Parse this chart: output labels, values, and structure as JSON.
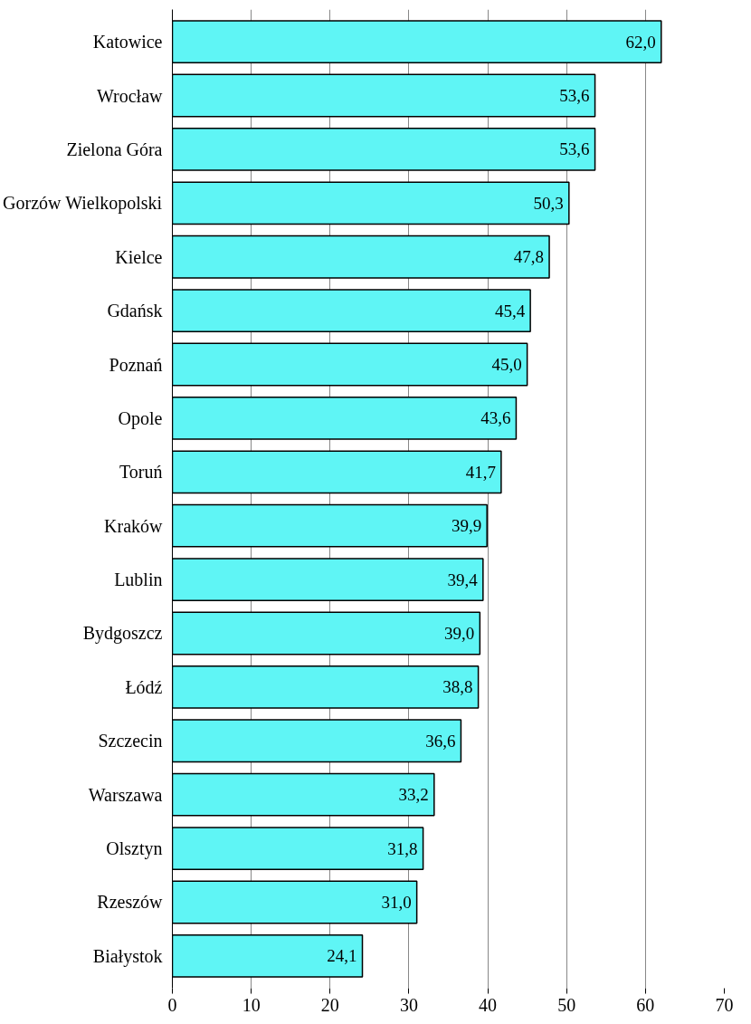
{
  "chart_data": {
    "type": "bar",
    "orientation": "horizontal",
    "categories": [
      "Katowice",
      "Wrocław",
      "Zielona Góra",
      "Gorzów Wielkopolski",
      "Kielce",
      "Gdańsk",
      "Poznań",
      "Opole",
      "Toruń",
      "Kraków",
      "Lublin",
      "Bydgoszcz",
      "Łódź",
      "Szczecin",
      "Warszawa",
      "Olsztyn",
      "Rzeszów",
      "Białystok"
    ],
    "values": [
      62.0,
      53.6,
      53.6,
      50.3,
      47.8,
      45.4,
      45.0,
      43.6,
      41.7,
      39.9,
      39.4,
      39.0,
      38.8,
      36.6,
      33.2,
      31.8,
      31.0,
      24.1
    ],
    "value_labels": [
      "62,0",
      "53,6",
      "53,6",
      "50,3",
      "47,8",
      "45,4",
      "45,0",
      "43,6",
      "41,7",
      "39,9",
      "39,4",
      "39,0",
      "38,8",
      "36,6",
      "33,2",
      "31,8",
      "31,0",
      "24,1"
    ],
    "color": "#5ff5f5",
    "xlim": [
      0,
      70
    ],
    "xticks": [
      0,
      10,
      20,
      30,
      40,
      50,
      60,
      70
    ],
    "grid": "x"
  }
}
